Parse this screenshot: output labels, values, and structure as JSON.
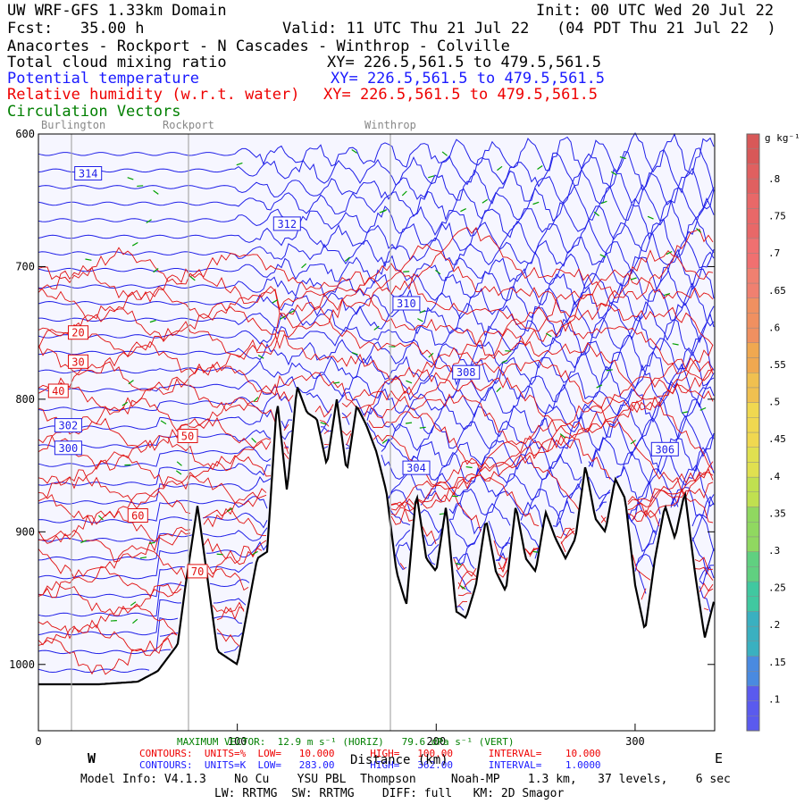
{
  "header": {
    "line1_left": "UW WRF-GFS 1.33km Domain",
    "line1_right": "Init: 00 UTC Wed 20 Jul 22",
    "line2_left": "Fcst:   35.00 h",
    "line2_right": "Valid: 11 UTC Thu 21 Jul 22   (04 PDT Thu 21 Jul 22  )",
    "line3": "Anacortes - Rockport - N Cascades - Winthrop - Colville",
    "field1": "Total cloud mixing ratio",
    "field1_xy": "XY= 226.5,561.5 to 479.5,561.5",
    "field2": "Potential temperature",
    "field2_xy": "XY= 226.5,561.5 to 479.5,561.5",
    "field3": "Relative humidity (w.r.t. water)",
    "field3_xy": "XY= 226.5,561.5 to 479.5,561.5",
    "field4": "Circulation Vectors"
  },
  "places": [
    "Burlington",
    "Rockport",
    "Winthrop"
  ],
  "colorbar": {
    "unit": "g kg⁻¹",
    "ticks": [
      ".8",
      ".75",
      ".7",
      ".65",
      ".6",
      ".55",
      ".5",
      ".45",
      ".4",
      ".35",
      ".3",
      ".25",
      ".2",
      ".15",
      ".1"
    ]
  },
  "footer": {
    "vector_line": "MAXIMUM VECTOR:  12.9 m s⁻¹ (HORIZ)   79.6 dPa s⁻¹ (VERT)",
    "contours_red": "CONTOURS:  UNITS=%  LOW=   10.000      HIGH=   100.00      INTERVAL=    10.000",
    "contours_blue": "CONTOURS:  UNITS=K  LOW=   283.00      HIGH=   362.00      INTERVAL=    1.0000",
    "model_info": "Model Info: V4.1.3    No Cu    YSU PBL  Thompson     Noah-MP    1.3 km,   37 levels,    6 sec",
    "model_info2": "LW: RRTMG  SW: RRTMG    DIFF: full   KM: 2D Smagor",
    "west": "W",
    "east": "E",
    "xlabel": "Distance (km)"
  },
  "chart_data": {
    "type": "line",
    "title": "Anacortes - Rockport - N Cascades - Winthrop - Colville",
    "xlabel": "Distance (km)",
    "ylabel": "",
    "xlim": [
      0,
      340
    ],
    "ylim": [
      1050,
      600
    ],
    "x_ticks": [
      "0",
      "100",
      "200",
      "300"
    ],
    "y_ticks": [
      "600",
      "700",
      "800",
      "900",
      "1000"
    ],
    "terrain": {
      "x": [
        0,
        10,
        30,
        50,
        60,
        70,
        74,
        80,
        90,
        100,
        110,
        115,
        120,
        125,
        130,
        135,
        140,
        145,
        150,
        155,
        160,
        165,
        170,
        175,
        180,
        185,
        190,
        195,
        200,
        205,
        210,
        215,
        220,
        225,
        230,
        235,
        240,
        245,
        250,
        255,
        260,
        265,
        270,
        275,
        280,
        285,
        290,
        295,
        300,
        305,
        310,
        315,
        320,
        325,
        330,
        335,
        340
      ],
      "surface_pressure": [
        1015,
        1015,
        1015,
        1013,
        1005,
        985,
        940,
        880,
        990,
        1000,
        920,
        915,
        800,
        870,
        790,
        810,
        815,
        850,
        800,
        855,
        805,
        820,
        840,
        870,
        930,
        955,
        870,
        920,
        930,
        880,
        960,
        965,
        940,
        890,
        930,
        945,
        880,
        920,
        930,
        885,
        905,
        920,
        905,
        850,
        890,
        900,
        860,
        875,
        940,
        975,
        920,
        880,
        905,
        870,
        930,
        980,
        950
      ]
    },
    "series": [
      {
        "name": "Potential temperature",
        "unit": "K",
        "labels": [
          "314",
          "312",
          "310",
          "308",
          "306",
          "304",
          "302",
          "300"
        ],
        "label_x": [
          25,
          125,
          185,
          215,
          315,
          190,
          15,
          15
        ],
        "label_p": [
          630,
          668,
          728,
          780,
          838,
          852,
          820,
          837
        ]
      },
      {
        "name": "Relative humidity (w.r.t. water)",
        "unit": "%",
        "labels": [
          "20",
          "30",
          "40",
          "50",
          "60",
          "70"
        ],
        "label_x": [
          20,
          20,
          10,
          75,
          50,
          80
        ],
        "label_p": [
          750,
          772,
          794,
          828,
          888,
          930
        ]
      }
    ],
    "grid": false,
    "legend": "none"
  },
  "colors": {
    "theta": "#2020e8",
    "rh": "#e01010",
    "vector": "#00a000",
    "terrain": "#000000",
    "plot_bg": "#f6f6ff"
  }
}
